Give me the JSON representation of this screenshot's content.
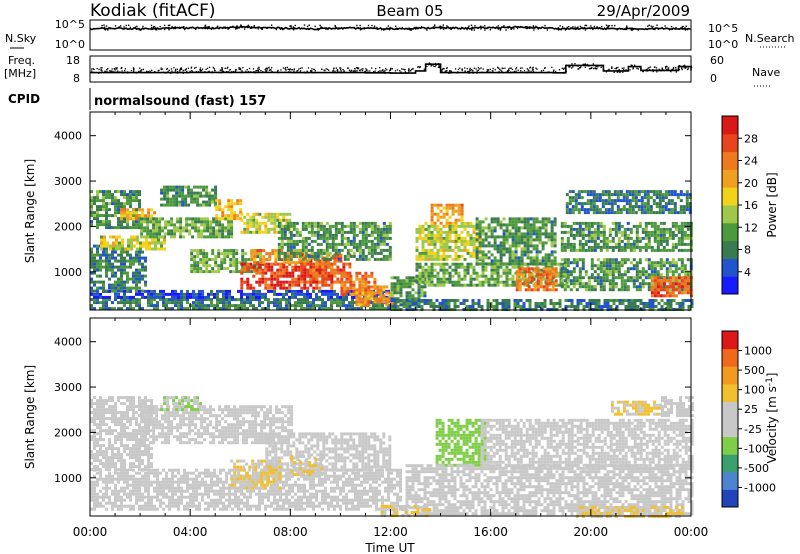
{
  "header": {
    "station": "Kodiak (fitACF)",
    "beam": "Beam 05",
    "date": "29/Apr/2009"
  },
  "side_labels": {
    "nsky": "N.Sky",
    "nsearch": "N.Search",
    "freq_line1": "Freq.",
    "freq_line2": "[MHz]",
    "nave": "Nave",
    "cpid": "CPID",
    "cpid_value": "normalsound (fast) 157"
  },
  "noise_axis": {
    "left_ticks": [
      "10^5",
      "10^0"
    ],
    "right_ticks": [
      "10^5",
      "10^0"
    ]
  },
  "freq_axis": {
    "left_ticks": [
      "18",
      "8"
    ],
    "right_ticks": [
      "60",
      "0"
    ]
  },
  "x_axis": {
    "label": "Time UT",
    "ticks": [
      "00:00",
      "04:00",
      "08:00",
      "12:00",
      "16:00",
      "20:00",
      "00:00"
    ],
    "tick_hours": [
      0,
      4,
      8,
      12,
      16,
      20,
      24
    ]
  },
  "colors": {
    "power": [
      "#1a1aff",
      "#2255cc",
      "#3a7a50",
      "#4c9a3c",
      "#9ec84a",
      "#f2d21a",
      "#f0a020",
      "#ee7a1e",
      "#e8451c",
      "#d91818"
    ],
    "velocity": [
      "#2244bb",
      "#4c84d0",
      "#37a06e",
      "#7fce4a",
      "#c8c8c8",
      "#c8c8c8",
      "#f0c030",
      "#f09a20",
      "#ee6a1a",
      "#dd1818"
    ]
  },
  "chart_data": [
    {
      "type": "heatmap",
      "title": "",
      "ylabel": "Slant Range [km]",
      "xlim": [
        0,
        24
      ],
      "ylim": [
        180,
        4500
      ],
      "y_ticks": [
        1000,
        2000,
        3000,
        4000
      ],
      "colorbar": {
        "label": "Power [dB]",
        "range": [
          0,
          32
        ],
        "ticks": [
          "4",
          "8",
          "12",
          "16",
          "20",
          "24",
          "28"
        ]
      },
      "regions": [
        {
          "t0": 0.0,
          "t1": 12.0,
          "r0": 180,
          "r1": 420,
          "value": 8
        },
        {
          "t0": 0.0,
          "t1": 12.0,
          "r0": 420,
          "r1": 600,
          "value": 4
        },
        {
          "t0": 0.0,
          "t1": 2.2,
          "r0": 600,
          "r1": 1600,
          "value": 8
        },
        {
          "t0": 0.0,
          "t1": 2.0,
          "r0": 2000,
          "r1": 2800,
          "value": 10
        },
        {
          "t0": 0.4,
          "t1": 3.0,
          "r0": 1500,
          "r1": 1800,
          "value": 16
        },
        {
          "t0": 1.2,
          "t1": 2.6,
          "r0": 2200,
          "r1": 2400,
          "value": 20
        },
        {
          "t0": 2.0,
          "t1": 5.6,
          "r0": 1800,
          "r1": 2200,
          "value": 12
        },
        {
          "t0": 2.8,
          "t1": 5.0,
          "r0": 2500,
          "r1": 2900,
          "value": 10
        },
        {
          "t0": 5.0,
          "t1": 6.0,
          "r0": 2200,
          "r1": 2600,
          "value": 20
        },
        {
          "t0": 6.0,
          "t1": 8.0,
          "r0": 1900,
          "r1": 2300,
          "value": 16
        },
        {
          "t0": 4.0,
          "t1": 6.8,
          "r0": 1000,
          "r1": 1500,
          "value": 12
        },
        {
          "t0": 6.0,
          "t1": 9.6,
          "r0": 650,
          "r1": 1200,
          "value": 28
        },
        {
          "t0": 6.4,
          "t1": 8.6,
          "r0": 1200,
          "r1": 1500,
          "value": 22
        },
        {
          "t0": 8.4,
          "t1": 10.4,
          "r0": 800,
          "r1": 1400,
          "value": 26
        },
        {
          "t0": 10.0,
          "t1": 11.4,
          "r0": 500,
          "r1": 1000,
          "value": 24
        },
        {
          "t0": 7.5,
          "t1": 12.0,
          "r0": 1300,
          "r1": 2100,
          "value": 10
        },
        {
          "t0": 10.6,
          "t1": 12.2,
          "r0": 300,
          "r1": 700,
          "value": 22
        },
        {
          "t0": 12.0,
          "t1": 13.4,
          "r0": 300,
          "r1": 900,
          "value": 10
        },
        {
          "t0": 13.0,
          "t1": 15.6,
          "r0": 1300,
          "r1": 2100,
          "value": 16
        },
        {
          "t0": 13.6,
          "t1": 14.8,
          "r0": 2100,
          "r1": 2500,
          "value": 22
        },
        {
          "t0": 13.0,
          "t1": 19.0,
          "r0": 700,
          "r1": 1200,
          "value": 12
        },
        {
          "t0": 15.4,
          "t1": 18.6,
          "r0": 1200,
          "r1": 2200,
          "value": 10
        },
        {
          "t0": 17.0,
          "t1": 18.6,
          "r0": 600,
          "r1": 1100,
          "value": 24
        },
        {
          "t0": 18.8,
          "t1": 24.0,
          "r0": 600,
          "r1": 1300,
          "value": 10
        },
        {
          "t0": 18.8,
          "t1": 24.0,
          "r0": 1500,
          "r1": 2100,
          "value": 10
        },
        {
          "t0": 19.0,
          "t1": 24.0,
          "r0": 2300,
          "r1": 2800,
          "value": 8
        },
        {
          "t0": 22.4,
          "t1": 24.0,
          "r0": 500,
          "r1": 900,
          "value": 26
        },
        {
          "t0": 12.0,
          "t1": 24.0,
          "r0": 180,
          "r1": 400,
          "value": 8
        }
      ]
    },
    {
      "type": "heatmap",
      "title": "",
      "ylabel": "Slant Range [km]",
      "xlim": [
        0,
        24
      ],
      "ylim": [
        180,
        4500
      ],
      "y_ticks": [
        1000,
        2000,
        3000,
        4000
      ],
      "colorbar": {
        "label": "Velocity [m s^-1]",
        "range": [
          -1000,
          1000
        ],
        "ticks": [
          "1000",
          "500",
          "100",
          "25",
          "-25",
          "-100",
          "-500",
          "-1000"
        ]
      },
      "regions": [
        {
          "t0": 0.0,
          "t1": 12.4,
          "r0": 300,
          "r1": 1200,
          "value": 0
        },
        {
          "t0": 0.0,
          "t1": 2.4,
          "r0": 1200,
          "r1": 2800,
          "value": 0
        },
        {
          "t0": 2.0,
          "t1": 8.0,
          "r0": 1800,
          "r1": 2600,
          "value": 0
        },
        {
          "t0": 7.0,
          "t1": 12.0,
          "r0": 1200,
          "r1": 2000,
          "value": 0
        },
        {
          "t0": 5.6,
          "t1": 7.6,
          "r0": 800,
          "r1": 1400,
          "value": 200
        },
        {
          "t0": 8.0,
          "t1": 9.2,
          "r0": 1100,
          "r1": 1500,
          "value": 200
        },
        {
          "t0": 2.8,
          "t1": 4.4,
          "r0": 2500,
          "r1": 2800,
          "value": -200
        },
        {
          "t0": 13.8,
          "t1": 15.8,
          "r0": 1300,
          "r1": 2300,
          "value": -300
        },
        {
          "t0": 12.6,
          "t1": 24.0,
          "r0": 200,
          "r1": 1300,
          "value": 0
        },
        {
          "t0": 15.6,
          "t1": 24.0,
          "r0": 1200,
          "r1": 2300,
          "value": 0
        },
        {
          "t0": 20.8,
          "t1": 22.8,
          "r0": 2400,
          "r1": 2700,
          "value": 200
        },
        {
          "t0": 22.8,
          "t1": 24.0,
          "r0": 2400,
          "r1": 2800,
          "value": 0
        },
        {
          "t0": 11.6,
          "t1": 13.6,
          "r0": 180,
          "r1": 400,
          "value": 200
        },
        {
          "t0": 19.4,
          "t1": 23.6,
          "r0": 180,
          "r1": 380,
          "value": 200
        }
      ]
    },
    {
      "type": "line",
      "title": "",
      "series": [
        {
          "name": "N.Sky"
        },
        {
          "name": "N.Search"
        }
      ],
      "x": [
        0,
        1,
        2,
        3,
        4,
        5,
        6,
        7,
        8,
        9,
        10,
        11,
        12,
        13,
        14,
        15,
        16,
        17,
        18,
        19,
        20,
        21,
        22,
        23,
        24
      ],
      "nsky_log10": [
        3.6,
        3.7,
        3.6,
        3.7,
        3.8,
        3.7,
        3.9,
        3.8,
        3.7,
        3.6,
        3.7,
        3.7,
        3.6,
        3.7,
        3.8,
        3.7,
        3.8,
        3.9,
        3.8,
        3.6,
        3.7,
        3.6,
        3.6,
        3.7,
        3.6
      ],
      "ylim": [
        0,
        5
      ]
    },
    {
      "type": "line",
      "title": "",
      "series": [
        {
          "name": "Freq."
        },
        {
          "name": "Nave"
        }
      ],
      "x": [
        0,
        2,
        4,
        6,
        8,
        10,
        11,
        12,
        13,
        13.4,
        14,
        16,
        18.5,
        19,
        20,
        20.5,
        21.5,
        22,
        23.5,
        24
      ],
      "freq_mhz": [
        11.5,
        11.5,
        11.6,
        11.6,
        11.5,
        11.5,
        11.4,
        11.3,
        12.2,
        15,
        11.5,
        11.5,
        11.4,
        14.5,
        14.5,
        12.2,
        14,
        12.4,
        14,
        12.5
      ],
      "nave": [
        28,
        28,
        29,
        29,
        28,
        28,
        28,
        27,
        33,
        40,
        28,
        29,
        28,
        38,
        38,
        30,
        36,
        31,
        36,
        32
      ],
      "ylim_freq": [
        8,
        18
      ],
      "ylim_nave": [
        0,
        60
      ]
    }
  ]
}
